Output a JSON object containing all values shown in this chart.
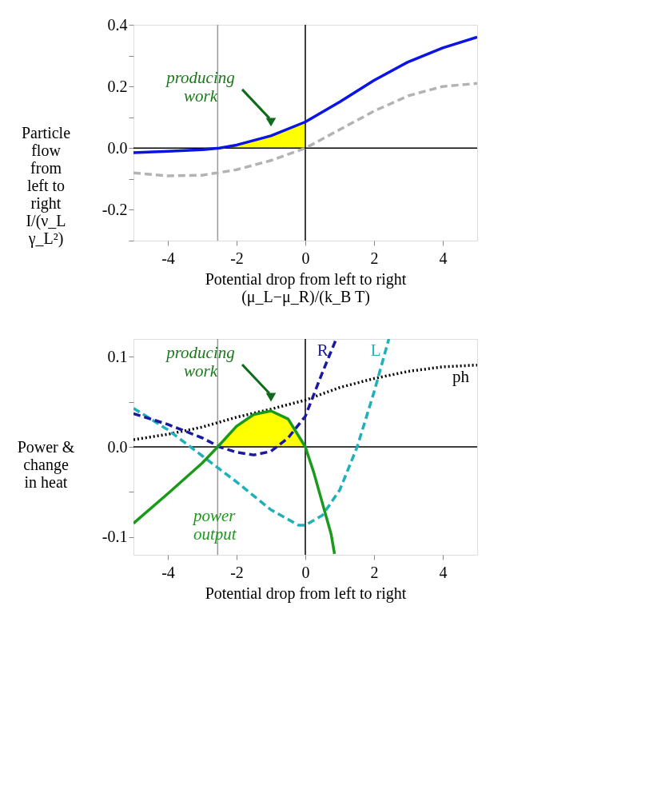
{
  "chart_data": [
    {
      "type": "line",
      "xlabel": "Potential drop from left to right\n(μ_L−μ_R)/(k_B T)",
      "ylabel": "Particle flow from left to right\nI/(ν_L γ_L²)",
      "xlim": [
        -5,
        5
      ],
      "xticks": [
        -4,
        -2,
        0,
        2,
        4
      ],
      "ylim": [
        -0.3,
        0.4
      ],
      "yticks": [
        {
          "value": 0.4,
          "label": "0.4"
        },
        {
          "value": 0.3,
          "label": null
        },
        {
          "value": 0.2,
          "label": "0.2"
        },
        {
          "value": 0.1,
          "label": null
        },
        {
          "value": 0,
          "label": "0.0"
        },
        {
          "value": -0.1,
          "label": null
        },
        {
          "value": -0.2,
          "label": "-0.2"
        },
        {
          "value": -0.3,
          "label": null
        }
      ],
      "grid": false,
      "series": [
        {
          "type": "area",
          "color": "#ffff00",
          "x": [
            -2.55,
            -2,
            -1.5,
            -1,
            -0.5,
            0
          ],
          "values": [
            0,
            0.01,
            0.022,
            0.04,
            0.06,
            0.085
          ]
        },
        {
          "color": "#b3b3b3",
          "line_style": "dashed",
          "x": [
            -5,
            -4,
            -3,
            -2,
            -1,
            0,
            1,
            2,
            3,
            4,
            5
          ],
          "values": [
            -0.08,
            -0.09,
            -0.088,
            -0.07,
            -0.04,
            0,
            0.06,
            0.12,
            0.17,
            0.2,
            0.21
          ]
        },
        {
          "color": "#0a14e6",
          "line_style": "solid",
          "x": [
            -5,
            -4,
            -3,
            -2.5,
            -2,
            -1,
            0,
            1,
            2,
            3,
            4,
            5
          ],
          "values": [
            -0.015,
            -0.01,
            -0.005,
            0,
            0.01,
            0.04,
            0.085,
            0.15,
            0.22,
            0.28,
            0.325,
            0.36
          ]
        }
      ],
      "ref_lines": [
        {
          "axis": "x",
          "value": -2.55,
          "color": "#999999"
        },
        {
          "axis": "x",
          "value": 0,
          "color": "#000000"
        },
        {
          "axis": "y",
          "value": 0,
          "color": "#000000"
        }
      ],
      "annotations": [
        "producing work"
      ]
    },
    {
      "type": "line",
      "xlabel": "Potential drop from left to right",
      "ylabel": "Power & change in heat",
      "xlim": [
        -5,
        5
      ],
      "xticks": [
        -4,
        -2,
        0,
        2,
        4
      ],
      "ylim": [
        -0.12,
        0.12
      ],
      "yticks": [
        {
          "value": 0.1,
          "label": "0.1"
        },
        {
          "value": 0.05,
          "label": null
        },
        {
          "value": 0,
          "label": "0.0"
        },
        {
          "value": -0.05,
          "label": null
        },
        {
          "value": -0.1,
          "label": "-0.1"
        }
      ],
      "grid": false,
      "series": [
        {
          "type": "area",
          "color": "#ffff00",
          "x": [
            -2.55,
            -2,
            -1.5,
            -1,
            -0.5,
            0
          ],
          "values": [
            0,
            0.023,
            0.036,
            0.04,
            0.031,
            0
          ]
        },
        {
          "name": "ph",
          "color": "#000000",
          "line_style": "dotted",
          "x": [
            -5,
            -4,
            -3,
            -2,
            -1,
            0,
            1,
            2,
            3,
            4,
            5
          ],
          "values": [
            0.008,
            0.014,
            0.022,
            0.033,
            0.042,
            0.052,
            0.066,
            0.076,
            0.084,
            0.089,
            0.091
          ]
        },
        {
          "name": "L",
          "color": "#20b0b8",
          "line_style": "dashed",
          "x": [
            -5,
            -4,
            -3,
            -2,
            -1,
            -0.2,
            0,
            0.5,
            1,
            1.5,
            2,
            2.43
          ],
          "values": [
            0.043,
            0.019,
            -0.01,
            -0.039,
            -0.07,
            -0.087,
            -0.087,
            -0.076,
            -0.048,
            -0.001,
            0.061,
            0.12
          ]
        },
        {
          "name": "R",
          "color": "#1a1aa0",
          "line_style": "dashed",
          "x": [
            -5,
            -4,
            -3,
            -2.5,
            -2,
            -1.5,
            -1,
            -0.5,
            0,
            0.5,
            0.9
          ],
          "values": [
            0.037,
            0.025,
            0.01,
            0,
            -0.006,
            -0.009,
            -0.005,
            0.01,
            0.034,
            0.083,
            0.12
          ]
        },
        {
          "name": "power output",
          "color": "#1a9a1a",
          "line_style": "solid",
          "x": [
            -5,
            -4,
            -3,
            -2.55,
            -2,
            -1.5,
            -1,
            -0.5,
            0,
            0.25,
            0.5,
            0.75,
            0.85
          ],
          "values": [
            -0.085,
            -0.052,
            -0.018,
            0,
            0.023,
            0.036,
            0.04,
            0.031,
            0,
            -0.029,
            -0.063,
            -0.097,
            -0.119
          ]
        }
      ],
      "ref_lines": [
        {
          "axis": "x",
          "value": -2.55,
          "color": "#999999"
        },
        {
          "axis": "x",
          "value": 0,
          "color": "#000000"
        },
        {
          "axis": "y",
          "value": 0,
          "color": "#000000"
        }
      ],
      "annotations": [
        "producing work"
      ]
    }
  ]
}
